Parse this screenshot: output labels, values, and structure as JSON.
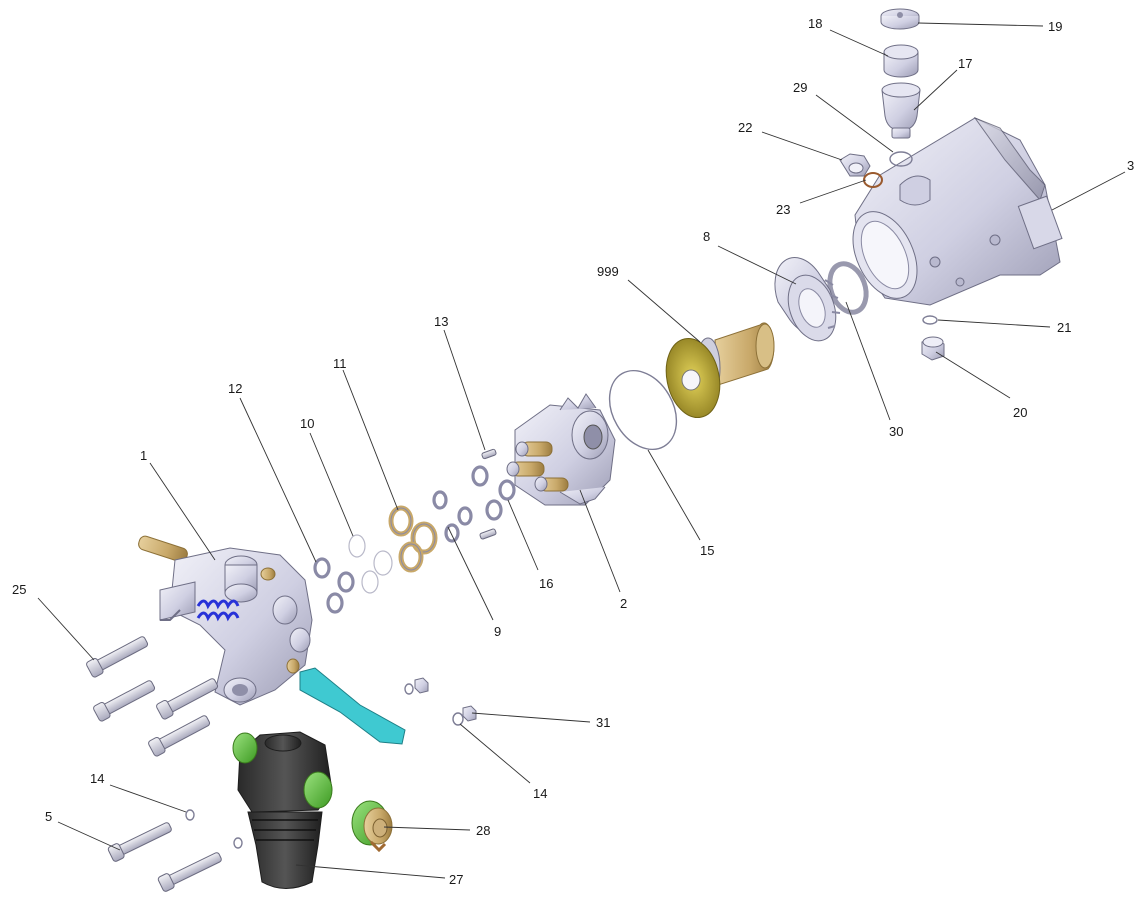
{
  "callouts": [
    {
      "id": "p1",
      "label": "1"
    },
    {
      "id": "p2",
      "label": "2"
    },
    {
      "id": "p3",
      "label": "3"
    },
    {
      "id": "p5",
      "label": "5"
    },
    {
      "id": "p8",
      "label": "8"
    },
    {
      "id": "p9",
      "label": "9"
    },
    {
      "id": "p10",
      "label": "10"
    },
    {
      "id": "p11",
      "label": "11"
    },
    {
      "id": "p12",
      "label": "12"
    },
    {
      "id": "p13",
      "label": "13"
    },
    {
      "id": "p14a",
      "label": "14"
    },
    {
      "id": "p14b",
      "label": "14"
    },
    {
      "id": "p15",
      "label": "15"
    },
    {
      "id": "p16",
      "label": "16"
    },
    {
      "id": "p17",
      "label": "17"
    },
    {
      "id": "p18",
      "label": "18"
    },
    {
      "id": "p19",
      "label": "19"
    },
    {
      "id": "p20",
      "label": "20"
    },
    {
      "id": "p21",
      "label": "21"
    },
    {
      "id": "p22",
      "label": "22"
    },
    {
      "id": "p23",
      "label": "23"
    },
    {
      "id": "p25",
      "label": "25"
    },
    {
      "id": "p27",
      "label": "27"
    },
    {
      "id": "p28",
      "label": "28"
    },
    {
      "id": "p29",
      "label": "29"
    },
    {
      "id": "p30",
      "label": "30"
    },
    {
      "id": "p31",
      "label": "31"
    },
    {
      "id": "p999",
      "label": "999"
    }
  ],
  "colors": {
    "metal": "#c9c9dc",
    "brass": "#c8a869",
    "black": "#3a3a3a",
    "green": "#5fc34a",
    "cyan": "#3fc9d1",
    "spring": "#2832d8",
    "leader": "#333333"
  }
}
